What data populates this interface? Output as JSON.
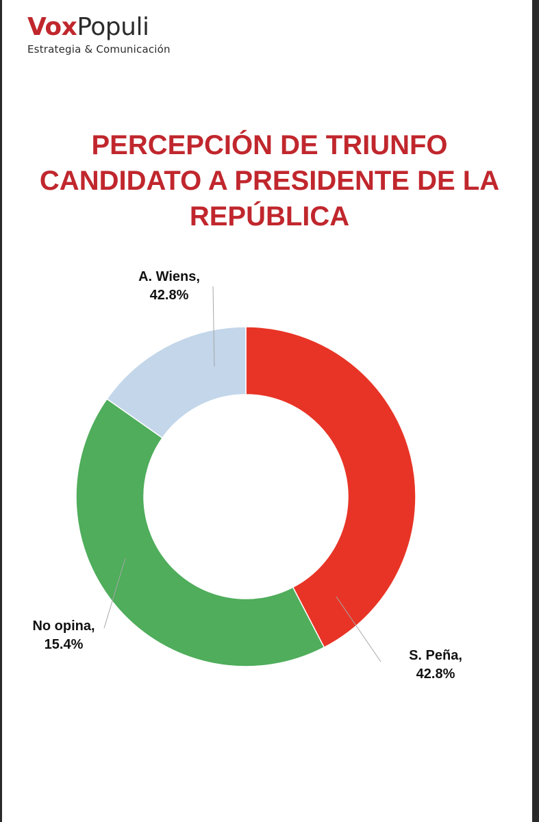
{
  "logo": {
    "brand_part1": "Vox",
    "brand_part2": "Populi",
    "tagline": "Estrategia & Comunicación",
    "brand_color": "#c0272d"
  },
  "title_lines": [
    "PERCEPCIÓN DE TRIUNFO",
    "CANDIDATO A PRESIDENTE DE LA",
    "REPÚBLICA"
  ],
  "chart_data": {
    "type": "pie",
    "style": "donut",
    "title": "PERCEPCIÓN DE TRIUNFO CANDIDATO A PRESIDENTE DE LA REPÚBLICA",
    "start_angle_deg": 270,
    "direction": "clockwise",
    "slices": [
      {
        "label": "A. Wiens",
        "value": 42.8,
        "value_label": "42.8%",
        "color": "#e83426"
      },
      {
        "label": "S. Peña",
        "value": 42.8,
        "value_label": "42.8%",
        "color": "#4fad5b"
      },
      {
        "label": "No opina",
        "value": 15.4,
        "value_label": "15.4%",
        "color": "#c3d6ea"
      }
    ],
    "legend": "none",
    "data_labels": "outside with leader lines"
  }
}
